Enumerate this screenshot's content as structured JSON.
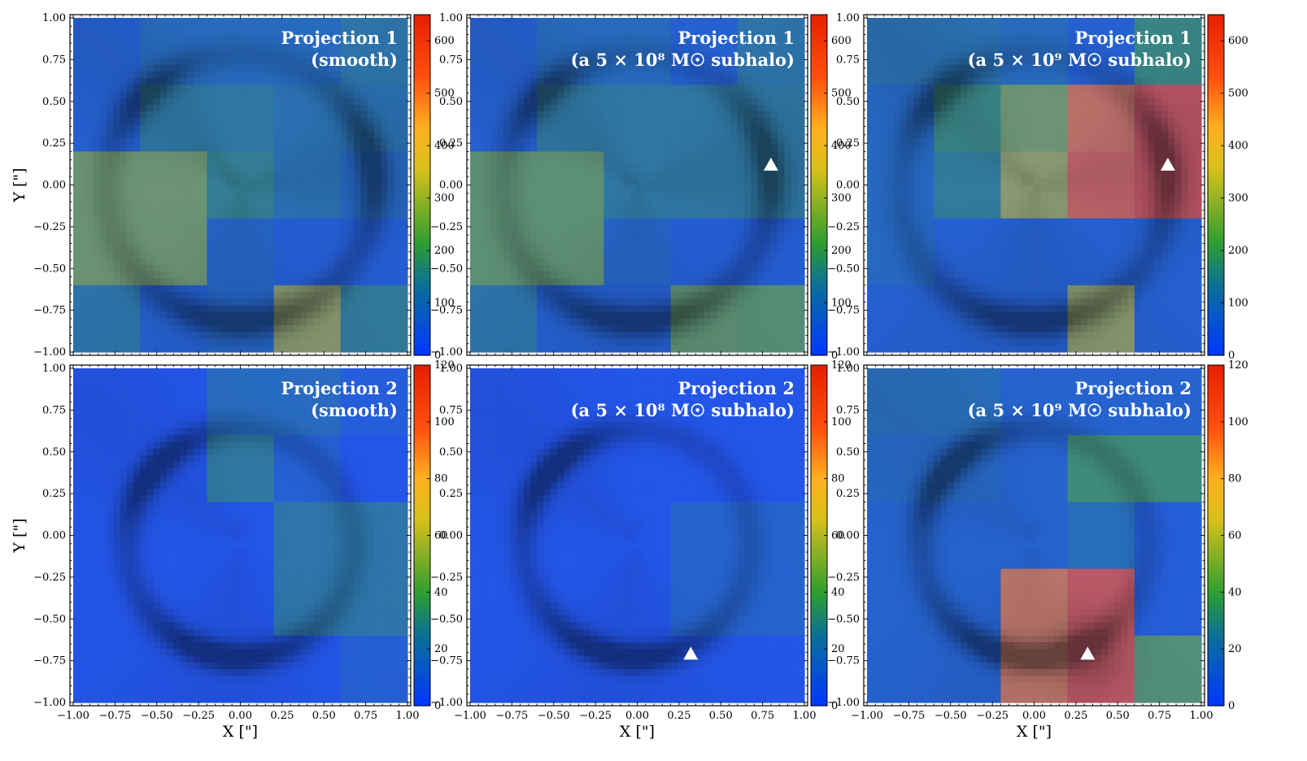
{
  "figure": {
    "title": ""
  },
  "chart_data": [
    {
      "type": "heatmap",
      "title_lines": [
        "Projection 1",
        "(smooth)"
      ],
      "xlabel": "",
      "ylabel": "Y [\"]",
      "xlim": [
        -1.0,
        1.0
      ],
      "ylim": [
        -1.0,
        1.0
      ],
      "x_ticks": [
        "−1.00",
        "−0.75",
        "−0.50",
        "−0.25",
        "0.00",
        "0.25",
        "0.50",
        "0.75",
        "1.00"
      ],
      "y_ticks": [
        "−1.00",
        "−0.75",
        "−0.50",
        "−0.25",
        "0.00",
        "0.25",
        "0.50",
        "0.75",
        "1.00"
      ],
      "colorbar": {
        "range": [
          0,
          650
        ],
        "ticks": [
          "0",
          "100",
          "200",
          "300",
          "400",
          "500",
          "600"
        ],
        "tick_values": [
          0,
          100,
          200,
          300,
          400,
          500,
          600
        ]
      },
      "grid_extent": [
        -1.0,
        1.0
      ],
      "block_size": 0.4,
      "block_values": [
        [
          80,
          120,
          120,
          120,
          150
        ],
        [
          80,
          160,
          160,
          140,
          140
        ],
        [
          280,
          280,
          180,
          140,
          110
        ],
        [
          280,
          280,
          100,
          70,
          70
        ],
        [
          150,
          80,
          100,
          320,
          170
        ]
      ],
      "features": [
        {
          "kind": "ring",
          "cx": 0.0,
          "cy": -0.02,
          "r": 0.8,
          "width": 0.07,
          "amp": 90,
          "tail": 0.2,
          "arcs": [
            {
              "a": 270,
              "s": 30
            },
            {
              "a": 12,
              "s": 20
            },
            {
              "a": 135,
              "s": 15
            }
          ]
        },
        {
          "kind": "blob",
          "x": -0.02,
          "y": 0.03,
          "s": 0.05,
          "amp": 40
        }
      ],
      "marker": null
    },
    {
      "type": "heatmap",
      "title_lines": [
        "Projection 1",
        "(a 5 × 10⁸ M☉ subhalo)"
      ],
      "xlabel": "",
      "ylabel": "",
      "xlim": [
        -1.0,
        1.0
      ],
      "ylim": [
        -1.0,
        1.0
      ],
      "x_ticks": [
        "−1.00",
        "−0.75",
        "−0.50",
        "−0.25",
        "0.00",
        "0.25",
        "0.50",
        "0.75",
        "1.00"
      ],
      "y_ticks": [
        "−1.00",
        "−0.75",
        "−0.50",
        "−0.25",
        "0.00",
        "0.25",
        "0.50",
        "0.75",
        "1.00"
      ],
      "colorbar": {
        "range": [
          0,
          650
        ],
        "ticks": [
          "0",
          "100",
          "200",
          "300",
          "400",
          "500",
          "600"
        ],
        "tick_values": [
          0,
          100,
          200,
          300,
          400,
          500,
          600
        ]
      },
      "grid_extent": [
        -1.0,
        1.0
      ],
      "block_size": 0.4,
      "block_values": [
        [
          80,
          120,
          120,
          80,
          150
        ],
        [
          80,
          160,
          160,
          160,
          160
        ],
        [
          260,
          260,
          160,
          160,
          160
        ],
        [
          260,
          260,
          100,
          70,
          70
        ],
        [
          150,
          80,
          80,
          260,
          250
        ]
      ],
      "features": [
        {
          "kind": "ring",
          "cx": 0.0,
          "cy": -0.02,
          "r": 0.8,
          "width": 0.07,
          "amp": 90,
          "tail": 0.2,
          "arcs": [
            {
              "a": 270,
              "s": 30
            },
            {
              "a": 12,
              "s": 20
            },
            {
              "a": 135,
              "s": 15
            }
          ]
        },
        {
          "kind": "blob",
          "x": -0.02,
          "y": 0.03,
          "s": 0.05,
          "amp": 40
        }
      ],
      "marker": {
        "x": 0.8,
        "y": 0.12
      }
    },
    {
      "type": "heatmap",
      "title_lines": [
        "Projection 1",
        "(a 5 × 10⁹ M☉ subhalo)"
      ],
      "xlabel": "",
      "ylabel": "",
      "xlim": [
        -1.0,
        1.0
      ],
      "ylim": [
        -1.0,
        1.0
      ],
      "x_ticks": [
        "−1.00",
        "−0.75",
        "−0.50",
        "−0.25",
        "0.00",
        "0.25",
        "0.50",
        "0.75",
        "1.00"
      ],
      "y_ticks": [
        "−1.00",
        "−0.75",
        "−0.50",
        "−0.25",
        "0.00",
        "0.25",
        "0.50",
        "0.75",
        "1.00"
      ],
      "colorbar": {
        "range": [
          0,
          650
        ],
        "ticks": [
          "0",
          "100",
          "200",
          "300",
          "400",
          "500",
          "600"
        ],
        "tick_values": [
          0,
          100,
          200,
          300,
          400,
          500,
          600
        ]
      },
      "grid_extent": [
        -1.0,
        1.0
      ],
      "block_size": 0.4,
      "block_values": [
        [
          140,
          140,
          120,
          80,
          200
        ],
        [
          110,
          200,
          280,
          500,
          560
        ],
        [
          110,
          170,
          320,
          520,
          560
        ],
        [
          110,
          80,
          80,
          80,
          80
        ],
        [
          80,
          80,
          80,
          320,
          80
        ]
      ],
      "features": [
        {
          "kind": "ring",
          "cx": 0.0,
          "cy": -0.02,
          "r": 0.8,
          "width": 0.07,
          "amp": 90,
          "tail": 0.2,
          "arcs": [
            {
              "a": 270,
              "s": 30
            },
            {
              "a": 12,
              "s": 20
            },
            {
              "a": 135,
              "s": 15
            }
          ]
        },
        {
          "kind": "blob",
          "x": -0.02,
          "y": 0.03,
          "s": 0.05,
          "amp": 40
        }
      ],
      "marker": {
        "x": 0.8,
        "y": 0.12
      }
    },
    {
      "type": "heatmap",
      "title_lines": [
        "Projection 2",
        "(smooth)"
      ],
      "xlabel": "X [\"]",
      "ylabel": "Y [\"]",
      "xlim": [
        -1.0,
        1.0
      ],
      "ylim": [
        -1.0,
        1.0
      ],
      "x_ticks": [
        "−1.00",
        "−0.75",
        "−0.50",
        "−0.25",
        "0.00",
        "0.25",
        "0.50",
        "0.75",
        "1.00"
      ],
      "y_ticks": [
        "−1.00",
        "−0.75",
        "−0.50",
        "−0.25",
        "0.00",
        "0.25",
        "0.50",
        "0.75",
        "1.00"
      ],
      "colorbar": {
        "range": [
          0,
          120
        ],
        "ticks": [
          "0",
          "20",
          "40",
          "60",
          "80",
          "100",
          "120"
        ],
        "tick_values": [
          0,
          20,
          40,
          60,
          80,
          100,
          120
        ]
      },
      "grid_extent": [
        -1.0,
        1.0
      ],
      "block_size": 0.4,
      "block_values": [
        [
          6,
          6,
          22,
          22,
          12
        ],
        [
          6,
          6,
          30,
          14,
          6
        ],
        [
          6,
          6,
          6,
          28,
          28
        ],
        [
          6,
          6,
          6,
          28,
          28
        ],
        [
          6,
          6,
          6,
          6,
          14
        ]
      ],
      "features": [
        {
          "kind": "ring",
          "cx": 0.0,
          "cy": -0.05,
          "r": 0.68,
          "width": 0.065,
          "amp": 18,
          "tail": 0.15,
          "arcs": [
            {
              "a": 138,
              "s": 22
            },
            {
              "a": 262,
              "s": 30
            }
          ]
        },
        {
          "kind": "blob",
          "x": 0.0,
          "y": 0.05,
          "s": 0.04,
          "amp": 6
        }
      ],
      "marker": null
    },
    {
      "type": "heatmap",
      "title_lines": [
        "Projection 2",
        "(a 5 × 10⁸ M☉ subhalo)"
      ],
      "xlabel": "X [\"]",
      "ylabel": "",
      "xlim": [
        -1.0,
        1.0
      ],
      "ylim": [
        -1.0,
        1.0
      ],
      "x_ticks": [
        "−1.00",
        "−0.75",
        "−0.50",
        "−0.25",
        "0.00",
        "0.25",
        "0.50",
        "0.75",
        "1.00"
      ],
      "y_ticks": [
        "−1.00",
        "−0.75",
        "−0.50",
        "−0.25",
        "0.00",
        "0.25",
        "0.50",
        "0.75",
        "1.00"
      ],
      "colorbar": {
        "range": [
          0,
          120
        ],
        "ticks": [
          "0",
          "20",
          "40",
          "60",
          "80",
          "100",
          "120"
        ],
        "tick_values": [
          0,
          20,
          40,
          60,
          80,
          100,
          120
        ]
      },
      "grid_extent": [
        -1.0,
        1.0
      ],
      "block_size": 0.4,
      "block_values": [
        [
          6,
          6,
          6,
          6,
          6
        ],
        [
          6,
          6,
          6,
          6,
          6
        ],
        [
          6,
          6,
          6,
          16,
          16
        ],
        [
          6,
          6,
          6,
          16,
          16
        ],
        [
          6,
          6,
          6,
          6,
          6
        ]
      ],
      "features": [
        {
          "kind": "ring",
          "cx": 0.0,
          "cy": -0.05,
          "r": 0.68,
          "width": 0.065,
          "amp": 18,
          "tail": 0.15,
          "arcs": [
            {
              "a": 138,
              "s": 22
            },
            {
              "a": 262,
              "s": 30
            }
          ]
        },
        {
          "kind": "blob",
          "x": 0.0,
          "y": 0.05,
          "s": 0.04,
          "amp": 6
        }
      ],
      "marker": {
        "x": 0.32,
        "y": -0.71
      }
    },
    {
      "type": "heatmap",
      "title_lines": [
        "Projection 2",
        "(a 5 × 10⁹ M☉ subhalo)"
      ],
      "xlabel": "X [\"]",
      "ylabel": "",
      "xlim": [
        -1.0,
        1.0
      ],
      "ylim": [
        -1.0,
        1.0
      ],
      "x_ticks": [
        "−1.00",
        "−0.75",
        "−0.50",
        "−0.25",
        "0.00",
        "0.25",
        "0.50",
        "0.75",
        "1.00"
      ],
      "y_ticks": [
        "−1.00",
        "−0.75",
        "−0.50",
        "−0.25",
        "0.00",
        "0.25",
        "0.50",
        "0.75",
        "1.00"
      ],
      "colorbar": {
        "range": [
          0,
          120
        ],
        "ticks": [
          "0",
          "20",
          "40",
          "60",
          "80",
          "100",
          "120"
        ],
        "tick_values": [
          0,
          20,
          40,
          60,
          80,
          100,
          120
        ]
      },
      "grid_extent": [
        -1.0,
        1.0
      ],
      "block_size": 0.4,
      "block_values": [
        [
          24,
          24,
          16,
          16,
          16
        ],
        [
          20,
          20,
          16,
          40,
          40
        ],
        [
          16,
          16,
          16,
          24,
          12
        ],
        [
          16,
          16,
          90,
          100,
          12
        ],
        [
          16,
          16,
          90,
          100,
          45
        ]
      ],
      "features": [
        {
          "kind": "ring",
          "cx": 0.0,
          "cy": -0.05,
          "r": 0.68,
          "width": 0.065,
          "amp": 18,
          "tail": 0.15,
          "arcs": [
            {
              "a": 138,
              "s": 22
            },
            {
              "a": 262,
              "s": 30
            }
          ]
        },
        {
          "kind": "blob",
          "x": 0.0,
          "y": 0.05,
          "s": 0.04,
          "amp": 6
        },
        {
          "kind": "blob",
          "x": 0.33,
          "y": -0.7,
          "s": 0.15,
          "amp": 22
        }
      ],
      "marker": {
        "x": 0.32,
        "y": -0.71
      }
    }
  ],
  "colors": {
    "colormap": [
      "#0038ff",
      "#0a6f9a",
      "#2e9e30",
      "#d8c01c",
      "#ffb020",
      "#ff5010",
      "#e82000"
    ],
    "colormap_stops": [
      0.0,
      0.2,
      0.33,
      0.55,
      0.67,
      0.82,
      1.0
    ],
    "overlay_tint": "#5c75ff",
    "marker": "#ffffff",
    "title_text": "#ffffff"
  }
}
